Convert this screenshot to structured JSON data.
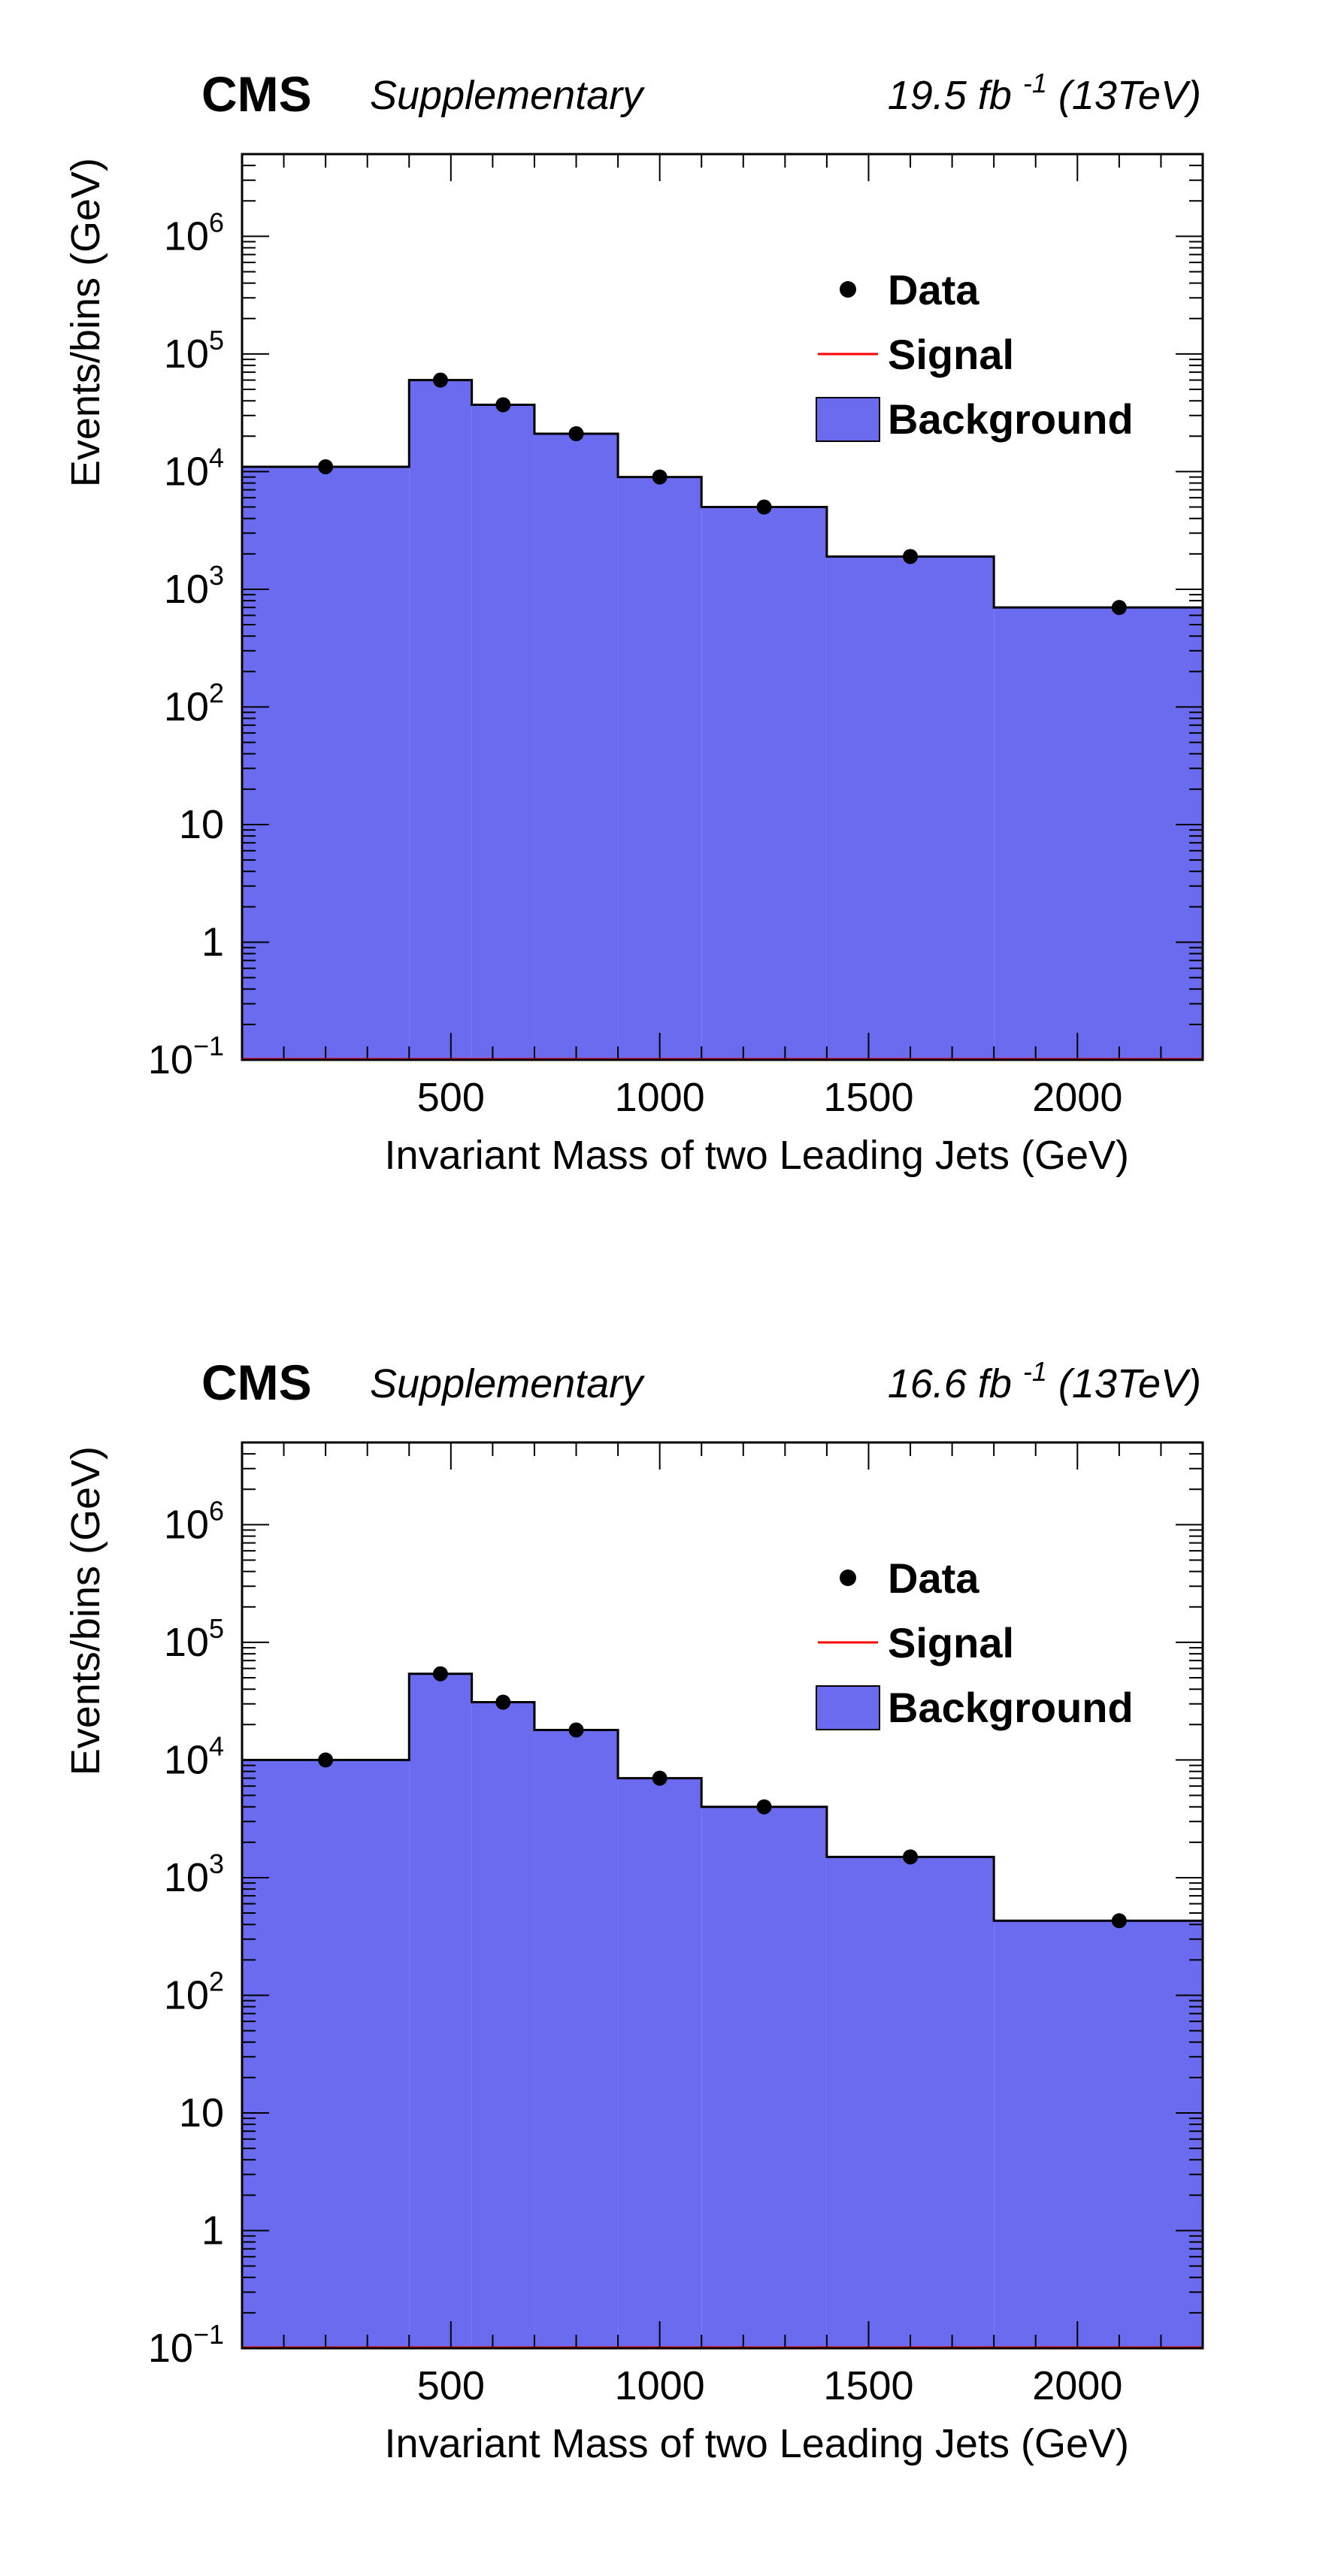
{
  "chart_data": [
    {
      "type": "bar",
      "experiment": "CMS",
      "label": "Supplementary",
      "lumi_text": "19.5 fb",
      "lumi_exp": "-1",
      "energy_text": "(13TeV)",
      "xlabel": "Invariant Mass of two Leading Jets (GeV)",
      "ylabel": "Events/bins (GeV)",
      "xlim": [
        0,
        2300
      ],
      "ylim": [
        0.1,
        5000000
      ],
      "yscale": "log",
      "x_ticks": [
        "500",
        "1000",
        "1500",
        "2000"
      ],
      "y_ticks": [
        "10^-1",
        "1",
        "10",
        "10^2",
        "10^3",
        "10^4",
        "10^5",
        "10^6"
      ],
      "legend": {
        "position": "top-right",
        "entries": [
          "Data",
          "Signal",
          "Background"
        ]
      },
      "colors": {
        "background_fill": "#6b6bf0",
        "signal": "#ff0000",
        "data": "#000000"
      },
      "bin_edges": [
        0,
        400,
        550,
        700,
        900,
        1100,
        1400,
        1800,
        2300
      ],
      "series": [
        {
          "name": "Background",
          "kind": "hist",
          "values": [
            11000,
            60000,
            37000,
            21000,
            9000,
            5000,
            1900,
            700
          ]
        },
        {
          "name": "Data",
          "kind": "points",
          "x": [
            200,
            475,
            625,
            800,
            1000,
            1250,
            1600,
            2100
          ],
          "values": [
            11000,
            60000,
            37000,
            21000,
            9000,
            5000,
            1900,
            700
          ]
        },
        {
          "name": "Signal",
          "kind": "line",
          "values": [
            0.1,
            0.1,
            0.1,
            0.1,
            0.1,
            0.1,
            0.1,
            0.1
          ]
        }
      ]
    },
    {
      "type": "bar",
      "experiment": "CMS",
      "label": "Supplementary",
      "lumi_text": "16.6 fb",
      "lumi_exp": "-1",
      "energy_text": "(13TeV)",
      "xlabel": "Invariant Mass of two Leading Jets (GeV)",
      "ylabel": "Events/bins (GeV)",
      "xlim": [
        0,
        2300
      ],
      "ylim": [
        0.1,
        5000000
      ],
      "yscale": "log",
      "x_ticks": [
        "500",
        "1000",
        "1500",
        "2000"
      ],
      "y_ticks": [
        "10^-1",
        "1",
        "10",
        "10^2",
        "10^3",
        "10^4",
        "10^5",
        "10^6"
      ],
      "legend": {
        "position": "top-right",
        "entries": [
          "Data",
          "Signal",
          "Background"
        ]
      },
      "colors": {
        "background_fill": "#6b6bf0",
        "signal": "#ff0000",
        "data": "#000000"
      },
      "bin_edges": [
        0,
        400,
        550,
        700,
        900,
        1100,
        1400,
        1800,
        2300
      ],
      "series": [
        {
          "name": "Background",
          "kind": "hist",
          "values": [
            10000,
            54000,
            31000,
            18000,
            7000,
            4000,
            1500,
            430
          ]
        },
        {
          "name": "Data",
          "kind": "points",
          "x": [
            200,
            475,
            625,
            800,
            1000,
            1250,
            1600,
            2100
          ],
          "values": [
            10000,
            54000,
            31000,
            18000,
            7000,
            4000,
            1500,
            430
          ]
        },
        {
          "name": "Signal",
          "kind": "line",
          "values": [
            0.1,
            0.1,
            0.1,
            0.1,
            0.1,
            0.1,
            0.1,
            0.1
          ]
        }
      ]
    }
  ]
}
